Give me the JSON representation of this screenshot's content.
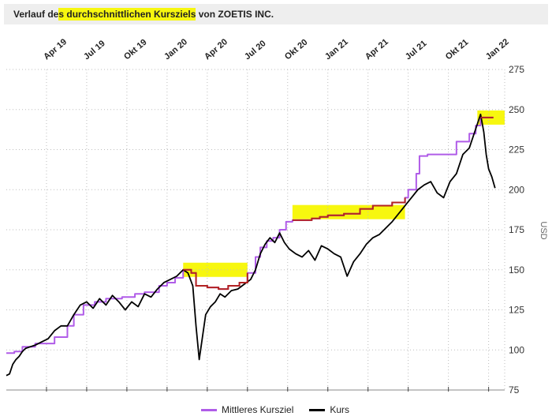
{
  "title": {
    "part1": "Verlauf de",
    "part2": "s durchschnittlichen Kursziels",
    "part3": " von ZOETIS INC."
  },
  "chart_data": {
    "type": "line",
    "title": "Verlauf des durchschnittlichen Kursziels von ZOETIS INC.",
    "ylabel": "USD",
    "ylim": [
      75,
      275
    ],
    "yticks": [
      75,
      100,
      125,
      150,
      175,
      200,
      225,
      250,
      275
    ],
    "xlim": [
      2019.0,
      2022.1
    ],
    "xticks": [
      {
        "label": "Apr 19",
        "x": 2019.25
      },
      {
        "label": "Jul 19",
        "x": 2019.5
      },
      {
        "label": "Okt 19",
        "x": 2019.75
      },
      {
        "label": "Jan 20",
        "x": 2020.0
      },
      {
        "label": "Apr 20",
        "x": 2020.25
      },
      {
        "label": "Jul 20",
        "x": 2020.5
      },
      {
        "label": "Okt 20",
        "x": 2020.75
      },
      {
        "label": "Jan 21",
        "x": 2021.0
      },
      {
        "label": "Apr 21",
        "x": 2021.25
      },
      {
        "label": "Jul 21",
        "x": 2021.5
      },
      {
        "label": "Okt 21",
        "x": 2021.75
      },
      {
        "label": "Jan 22",
        "x": 2022.0
      }
    ],
    "grid": true,
    "legend_position": "bottom",
    "series": [
      {
        "name": "Mittleres Kursziel",
        "color": "#b05ce8",
        "step": true,
        "points": [
          [
            2019.0,
            98
          ],
          [
            2019.05,
            99
          ],
          [
            2019.1,
            102
          ],
          [
            2019.18,
            104
          ],
          [
            2019.3,
            108
          ],
          [
            2019.38,
            115
          ],
          [
            2019.42,
            122
          ],
          [
            2019.48,
            128
          ],
          [
            2019.55,
            130
          ],
          [
            2019.62,
            132
          ],
          [
            2019.72,
            133
          ],
          [
            2019.8,
            135
          ],
          [
            2019.86,
            136
          ],
          [
            2019.95,
            140
          ],
          [
            2020.0,
            142
          ],
          [
            2020.05,
            145
          ],
          [
            2020.1,
            150
          ],
          [
            2020.15,
            148
          ],
          [
            2020.18,
            140
          ],
          [
            2020.25,
            139
          ],
          [
            2020.32,
            138
          ],
          [
            2020.38,
            140
          ],
          [
            2020.45,
            142
          ],
          [
            2020.5,
            148
          ],
          [
            2020.55,
            158
          ],
          [
            2020.58,
            164
          ],
          [
            2020.62,
            168
          ],
          [
            2020.66,
            170
          ],
          [
            2020.7,
            175
          ],
          [
            2020.74,
            180
          ],
          [
            2020.78,
            181
          ],
          [
            2020.9,
            182
          ],
          [
            2020.95,
            183
          ],
          [
            2021.0,
            184
          ],
          [
            2021.1,
            185
          ],
          [
            2021.2,
            188
          ],
          [
            2021.28,
            190
          ],
          [
            2021.4,
            192
          ],
          [
            2021.48,
            195
          ],
          [
            2021.5,
            200
          ],
          [
            2021.55,
            210
          ],
          [
            2021.57,
            221
          ],
          [
            2021.62,
            222
          ],
          [
            2021.78,
            222
          ],
          [
            2021.8,
            230
          ],
          [
            2021.88,
            235
          ],
          [
            2021.92,
            240
          ],
          [
            2021.95,
            245
          ],
          [
            2022.03,
            245
          ]
        ]
      },
      {
        "name": "Kurs",
        "color": "#000000",
        "step": false,
        "points": [
          [
            2019.0,
            84
          ],
          [
            2019.02,
            85
          ],
          [
            2019.04,
            91
          ],
          [
            2019.06,
            94
          ],
          [
            2019.08,
            96
          ],
          [
            2019.1,
            99
          ],
          [
            2019.12,
            101
          ],
          [
            2019.15,
            102
          ],
          [
            2019.18,
            103
          ],
          [
            2019.22,
            105
          ],
          [
            2019.26,
            107
          ],
          [
            2019.3,
            112
          ],
          [
            2019.34,
            115
          ],
          [
            2019.38,
            115
          ],
          [
            2019.42,
            122
          ],
          [
            2019.46,
            128
          ],
          [
            2019.5,
            130
          ],
          [
            2019.54,
            126
          ],
          [
            2019.58,
            132
          ],
          [
            2019.62,
            128
          ],
          [
            2019.66,
            134
          ],
          [
            2019.7,
            130
          ],
          [
            2019.74,
            125
          ],
          [
            2019.78,
            130
          ],
          [
            2019.82,
            127
          ],
          [
            2019.86,
            135
          ],
          [
            2019.9,
            133
          ],
          [
            2019.94,
            138
          ],
          [
            2019.98,
            142
          ],
          [
            2020.02,
            144
          ],
          [
            2020.06,
            146
          ],
          [
            2020.1,
            150
          ],
          [
            2020.13,
            148
          ],
          [
            2020.16,
            140
          ],
          [
            2020.18,
            115
          ],
          [
            2020.2,
            94
          ],
          [
            2020.22,
            108
          ],
          [
            2020.24,
            122
          ],
          [
            2020.27,
            127
          ],
          [
            2020.3,
            130
          ],
          [
            2020.33,
            135
          ],
          [
            2020.36,
            133
          ],
          [
            2020.4,
            137
          ],
          [
            2020.44,
            138
          ],
          [
            2020.48,
            141
          ],
          [
            2020.52,
            144
          ],
          [
            2020.55,
            150
          ],
          [
            2020.58,
            160
          ],
          [
            2020.61,
            166
          ],
          [
            2020.64,
            170
          ],
          [
            2020.67,
            167
          ],
          [
            2020.7,
            173
          ],
          [
            2020.73,
            167
          ],
          [
            2020.76,
            163
          ],
          [
            2020.8,
            160
          ],
          [
            2020.84,
            158
          ],
          [
            2020.88,
            162
          ],
          [
            2020.92,
            156
          ],
          [
            2020.96,
            165
          ],
          [
            2021.0,
            163
          ],
          [
            2021.04,
            160
          ],
          [
            2021.08,
            158
          ],
          [
            2021.12,
            146
          ],
          [
            2021.16,
            155
          ],
          [
            2021.2,
            160
          ],
          [
            2021.24,
            166
          ],
          [
            2021.28,
            170
          ],
          [
            2021.32,
            172
          ],
          [
            2021.36,
            176
          ],
          [
            2021.4,
            180
          ],
          [
            2021.44,
            185
          ],
          [
            2021.48,
            190
          ],
          [
            2021.52,
            195
          ],
          [
            2021.56,
            200
          ],
          [
            2021.6,
            203
          ],
          [
            2021.64,
            205
          ],
          [
            2021.68,
            198
          ],
          [
            2021.72,
            195
          ],
          [
            2021.76,
            205
          ],
          [
            2021.8,
            210
          ],
          [
            2021.84,
            222
          ],
          [
            2021.88,
            226
          ],
          [
            2021.92,
            238
          ],
          [
            2021.95,
            247
          ],
          [
            2021.97,
            236
          ],
          [
            2021.985,
            222
          ],
          [
            2022.0,
            213
          ],
          [
            2022.02,
            208
          ],
          [
            2022.04,
            201
          ]
        ]
      }
    ],
    "highlights": [
      {
        "from": 2020.1,
        "to": 2020.5,
        "y": 150
      },
      {
        "from": 2020.78,
        "to": 2021.48,
        "y": 186
      },
      {
        "from": 2021.93,
        "to": 2022.1,
        "y": 245
      }
    ]
  },
  "legend": {
    "target_label": "Mittleres Kursziel",
    "price_label": "Kurs"
  }
}
